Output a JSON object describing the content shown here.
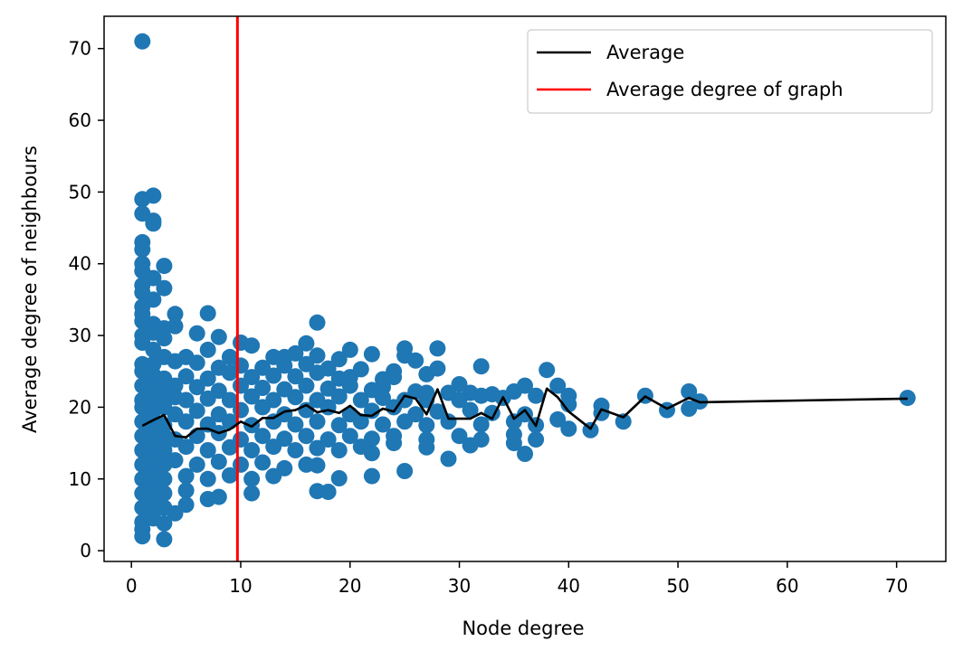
{
  "chart_data": {
    "type": "scatter",
    "xlabel": "Node degree",
    "ylabel": "Average degree of neighbours",
    "xlim": [
      -2.5,
      74.5
    ],
    "ylim": [
      -1.5,
      74.5
    ],
    "x_ticks": [
      0,
      10,
      20,
      30,
      40,
      50,
      60,
      70
    ],
    "y_ticks": [
      0,
      10,
      20,
      30,
      40,
      50,
      60,
      70
    ],
    "grid": false,
    "legend_position": "top-right",
    "legend": [
      {
        "label": "Average",
        "color": "#000000"
      },
      {
        "label": "Average degree of graph",
        "color": "#ff0000"
      }
    ],
    "colors": {
      "points": "#1f77b4",
      "average_line": "#000000",
      "reference_line": "#ff0000"
    },
    "reference_line": {
      "orientation": "vertical",
      "x": 9.7,
      "label": "Average degree of graph"
    },
    "average_line": {
      "label": "Average",
      "x": [
        1,
        2,
        3,
        4,
        5,
        6,
        7,
        8,
        9,
        10,
        11,
        12,
        13,
        14,
        15,
        16,
        17,
        18,
        19,
        20,
        21,
        22,
        23,
        24,
        25,
        26,
        27,
        28,
        29,
        30,
        31,
        32,
        33,
        34,
        35,
        36,
        37,
        38,
        39,
        40,
        42,
        43,
        45,
        47,
        49,
        51,
        52,
        71
      ],
      "y": [
        17.4,
        18.2,
        18.9,
        16.0,
        15.8,
        17.0,
        17.0,
        16.4,
        16.9,
        18.0,
        17.3,
        18.5,
        18.5,
        19.4,
        19.6,
        20.3,
        19.3,
        19.6,
        19.2,
        20.2,
        18.9,
        18.8,
        19.8,
        19.4,
        21.6,
        21.2,
        19.0,
        22.5,
        18.4,
        18.4,
        18.4,
        19.2,
        18.4,
        21.4,
        18.4,
        19.6,
        17.4,
        22.6,
        21.4,
        19.4,
        17.0,
        19.7,
        18.6,
        21.5,
        19.8,
        21.3,
        20.7,
        21.2
      ]
    },
    "scatter_points": [
      [
        1,
        71.0
      ],
      [
        1,
        49.0
      ],
      [
        2,
        49.5
      ],
      [
        1,
        47.0
      ],
      [
        2,
        46.0
      ],
      [
        2,
        45.6
      ],
      [
        1,
        43.0
      ],
      [
        1,
        42.0
      ],
      [
        1,
        40.0
      ],
      [
        1,
        39.0
      ],
      [
        3,
        39.7
      ],
      [
        2,
        38.0
      ],
      [
        1,
        37.0
      ],
      [
        1,
        36.0
      ],
      [
        3,
        36.6
      ],
      [
        2,
        35.0
      ],
      [
        1,
        34.0
      ],
      [
        1,
        33.0
      ],
      [
        4,
        33.0
      ],
      [
        7,
        33.1
      ],
      [
        1,
        32.0
      ],
      [
        2,
        31.6
      ],
      [
        3,
        31.0
      ],
      [
        4,
        31.3
      ],
      [
        17,
        31.8
      ],
      [
        1,
        30.0
      ],
      [
        2,
        30.4
      ],
      [
        3,
        29.6
      ],
      [
        6,
        30.3
      ],
      [
        8,
        29.8
      ],
      [
        10,
        29.0
      ],
      [
        11,
        28.6
      ],
      [
        16,
        28.9
      ],
      [
        20,
        28.0
      ],
      [
        25,
        28.2
      ],
      [
        28,
        28.2
      ],
      [
        1,
        29.0
      ],
      [
        2,
        28.0
      ],
      [
        3,
        27.0
      ],
      [
        5,
        27.0
      ],
      [
        7,
        28.0
      ],
      [
        9,
        27.0
      ],
      [
        13,
        27.0
      ],
      [
        14,
        27.0
      ],
      [
        15,
        27.5
      ],
      [
        17,
        27.2
      ],
      [
        19,
        26.7
      ],
      [
        22,
        27.4
      ],
      [
        25,
        27.2
      ],
      [
        26,
        26.5
      ],
      [
        1,
        26.0
      ],
      [
        2,
        26.0
      ],
      [
        4,
        26.4
      ],
      [
        6,
        26.2
      ],
      [
        8,
        25.5
      ],
      [
        10,
        25.8
      ],
      [
        12,
        25.5
      ],
      [
        14,
        25.8
      ],
      [
        16,
        26.0
      ],
      [
        18,
        25.4
      ],
      [
        21,
        25.3
      ],
      [
        24,
        25.0
      ],
      [
        27,
        24.6
      ],
      [
        28,
        25.4
      ],
      [
        32,
        25.7
      ],
      [
        1,
        25.0
      ],
      [
        2,
        24.5
      ],
      [
        3,
        24.0
      ],
      [
        5,
        24.3
      ],
      [
        7,
        24.0
      ],
      [
        9,
        24.8
      ],
      [
        11,
        24.2
      ],
      [
        13,
        24.4
      ],
      [
        15,
        24.3
      ],
      [
        17,
        24.8
      ],
      [
        19,
        24.0
      ],
      [
        20,
        24.2
      ],
      [
        23,
        23.9
      ],
      [
        24,
        24.2
      ],
      [
        38,
        25.2
      ],
      [
        1,
        23.0
      ],
      [
        2,
        23.0
      ],
      [
        3,
        22.5
      ],
      [
        4,
        23.0
      ],
      [
        6,
        22.8
      ],
      [
        8,
        22.3
      ],
      [
        10,
        23.0
      ],
      [
        12,
        22.7
      ],
      [
        14,
        22.5
      ],
      [
        16,
        23.0
      ],
      [
        18,
        22.6
      ],
      [
        20,
        23.0
      ],
      [
        22,
        22.4
      ],
      [
        23,
        22.8
      ],
      [
        26,
        22.2
      ],
      [
        27,
        22.0
      ],
      [
        29,
        22.0
      ],
      [
        30,
        23.2
      ],
      [
        31,
        22.0
      ],
      [
        33,
        21.8
      ],
      [
        35,
        22.2
      ],
      [
        36,
        23.0
      ],
      [
        39,
        23.0
      ],
      [
        1,
        21.0
      ],
      [
        2,
        21.5
      ],
      [
        3,
        21.0
      ],
      [
        4,
        21.4
      ],
      [
        5,
        21.0
      ],
      [
        7,
        21.2
      ],
      [
        9,
        21.0
      ],
      [
        11,
        21.5
      ],
      [
        13,
        21.0
      ],
      [
        15,
        21.4
      ],
      [
        17,
        21.0
      ],
      [
        19,
        21.5
      ],
      [
        21,
        21.0
      ],
      [
        23,
        21.3
      ],
      [
        25,
        21.0
      ],
      [
        27,
        21.0
      ],
      [
        30,
        21.0
      ],
      [
        32,
        21.6
      ],
      [
        34,
        21.3
      ],
      [
        37,
        21.6
      ],
      [
        40,
        21.6
      ],
      [
        43,
        20.2
      ],
      [
        47,
        21.6
      ],
      [
        51,
        22.2
      ],
      [
        52,
        20.8
      ],
      [
        1,
        20.0
      ],
      [
        2,
        19.5
      ],
      [
        3,
        20.0
      ],
      [
        4,
        19.0
      ],
      [
        6,
        19.5
      ],
      [
        8,
        19.0
      ],
      [
        10,
        19.6
      ],
      [
        12,
        20.0
      ],
      [
        14,
        19.0
      ],
      [
        16,
        19.6
      ],
      [
        18,
        20.0
      ],
      [
        20,
        19.0
      ],
      [
        22,
        19.5
      ],
      [
        24,
        20.0
      ],
      [
        26,
        19.0
      ],
      [
        28,
        19.4
      ],
      [
        31,
        19.6
      ],
      [
        33,
        19.2
      ],
      [
        36,
        19.0
      ],
      [
        40,
        20.4
      ],
      [
        43,
        19.2
      ],
      [
        49,
        19.6
      ],
      [
        51,
        19.8
      ],
      [
        1,
        18.0
      ],
      [
        2,
        18.0
      ],
      [
        3,
        17.5
      ],
      [
        5,
        18.0
      ],
      [
        7,
        17.6
      ],
      [
        9,
        18.0
      ],
      [
        11,
        17.5
      ],
      [
        13,
        18.0
      ],
      [
        15,
        17.6
      ],
      [
        17,
        18.0
      ],
      [
        19,
        17.5
      ],
      [
        21,
        18.0
      ],
      [
        23,
        17.6
      ],
      [
        25,
        18.0
      ],
      [
        27,
        17.5
      ],
      [
        29,
        18.0
      ],
      [
        32,
        17.6
      ],
      [
        35,
        18.0
      ],
      [
        37,
        17.5
      ],
      [
        39,
        18.3
      ],
      [
        42,
        16.8
      ],
      [
        45,
        18.0
      ],
      [
        71,
        21.3
      ],
      [
        1,
        16.0
      ],
      [
        2,
        16.5
      ],
      [
        3,
        16.0
      ],
      [
        4,
        15.5
      ],
      [
        6,
        16.0
      ],
      [
        8,
        16.4
      ],
      [
        10,
        15.5
      ],
      [
        12,
        16.0
      ],
      [
        14,
        15.6
      ],
      [
        16,
        16.0
      ],
      [
        18,
        15.5
      ],
      [
        20,
        16.0
      ],
      [
        22,
        15.6
      ],
      [
        24,
        16.0
      ],
      [
        27,
        15.5
      ],
      [
        30,
        16.0
      ],
      [
        32,
        15.5
      ],
      [
        35,
        16.2
      ],
      [
        37,
        15.5
      ],
      [
        40,
        17.0
      ],
      [
        1,
        14.0
      ],
      [
        2,
        14.5
      ],
      [
        3,
        14.0
      ],
      [
        5,
        14.5
      ],
      [
        7,
        14.0
      ],
      [
        9,
        14.4
      ],
      [
        11,
        14.0
      ],
      [
        13,
        14.5
      ],
      [
        15,
        14.0
      ],
      [
        17,
        14.3
      ],
      [
        19,
        14.0
      ],
      [
        21,
        14.5
      ],
      [
        24,
        15.0
      ],
      [
        27,
        14.4
      ],
      [
        31,
        14.7
      ],
      [
        35,
        15.0
      ],
      [
        36,
        13.5
      ],
      [
        1,
        12.0
      ],
      [
        2,
        12.5
      ],
      [
        3,
        12.0
      ],
      [
        4,
        12.6
      ],
      [
        6,
        12.0
      ],
      [
        8,
        12.4
      ],
      [
        10,
        12.0
      ],
      [
        12,
        12.3
      ],
      [
        14,
        11.5
      ],
      [
        16,
        12.0
      ],
      [
        17,
        11.9
      ],
      [
        22,
        13.6
      ],
      [
        29,
        12.8
      ],
      [
        1,
        10.0
      ],
      [
        2,
        10.5
      ],
      [
        3,
        10.0
      ],
      [
        5,
        10.4
      ],
      [
        7,
        10.0
      ],
      [
        9,
        10.5
      ],
      [
        11,
        10.0
      ],
      [
        13,
        10.4
      ],
      [
        19,
        10.1
      ],
      [
        22,
        10.4
      ],
      [
        25,
        11.1
      ],
      [
        1,
        8.0
      ],
      [
        2,
        8.5
      ],
      [
        3,
        8.0
      ],
      [
        5,
        8.4
      ],
      [
        7,
        7.2
      ],
      [
        8,
        7.5
      ],
      [
        11,
        8.0
      ],
      [
        17,
        8.3
      ],
      [
        18,
        8.2
      ],
      [
        1,
        6.0
      ],
      [
        2,
        6.5
      ],
      [
        3,
        6.0
      ],
      [
        4,
        5.2
      ],
      [
        5,
        6.4
      ],
      [
        1,
        4.0
      ],
      [
        2,
        4.5
      ],
      [
        3,
        3.8
      ],
      [
        1,
        3.0
      ],
      [
        1,
        2.0
      ],
      [
        3,
        1.6
      ]
    ]
  }
}
